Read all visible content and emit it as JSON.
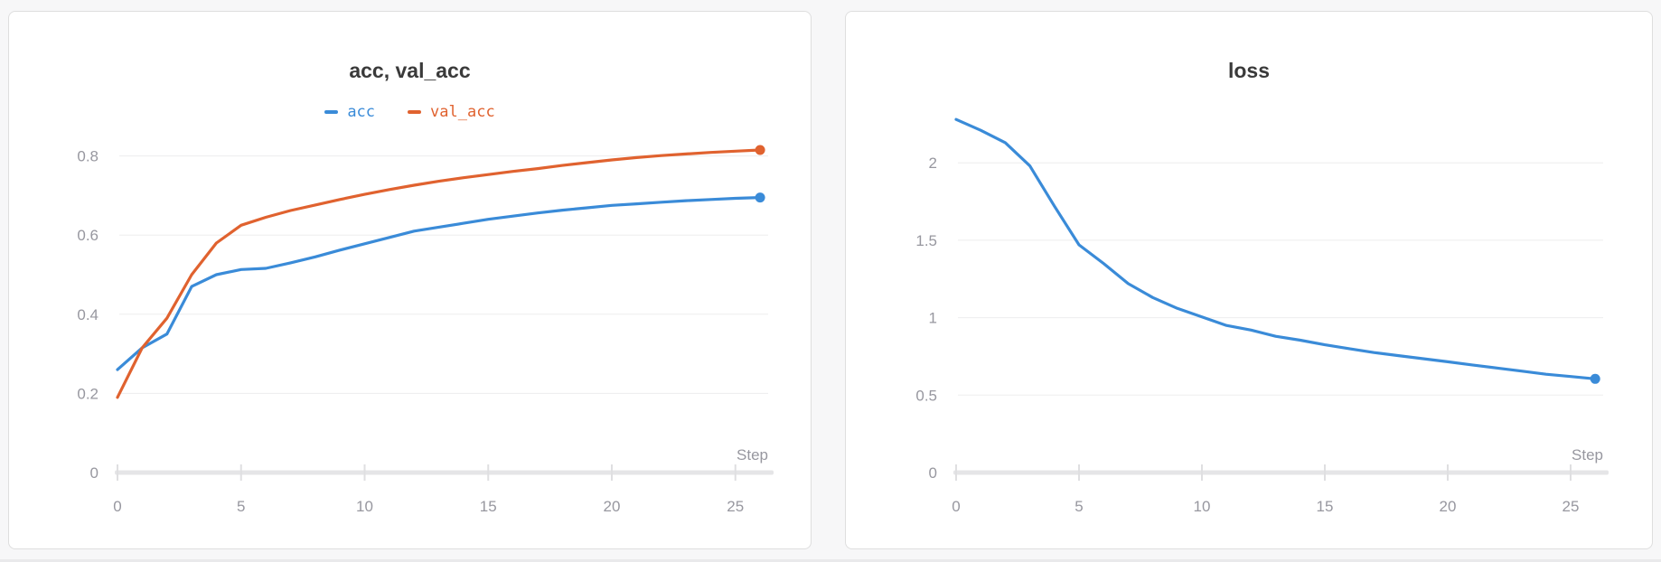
{
  "page": {
    "colors": {
      "background": "#f7f7f8",
      "panel_background": "#ffffff",
      "panel_border": "#dedede",
      "title_text": "#3a3a3a",
      "tick_text": "#97979f",
      "gridline": "#ededee",
      "axis_bar": "#e5e5e7",
      "axis_tick": "#dfdfe1",
      "series_blue": "#3a8bd8",
      "series_orange": "#e0622f"
    }
  },
  "chart_data": [
    {
      "type": "line",
      "title": "acc, val_acc",
      "xlabel": "Step",
      "show_legend": true,
      "grid": "horizontal",
      "legend_position": "top-center",
      "xlim": [
        0,
        26
      ],
      "ylim": [
        0,
        0.9
      ],
      "x": [
        0,
        1,
        2,
        3,
        4,
        5,
        6,
        7,
        8,
        9,
        10,
        11,
        12,
        13,
        14,
        15,
        16,
        17,
        18,
        19,
        20,
        21,
        22,
        23,
        24,
        25,
        26
      ],
      "x_ticks": [
        {
          "value": 0,
          "label": "0"
        },
        {
          "value": 5,
          "label": "5"
        },
        {
          "value": 10,
          "label": "10"
        },
        {
          "value": 15,
          "label": "15"
        },
        {
          "value": 20,
          "label": "20"
        },
        {
          "value": 25,
          "label": "25"
        }
      ],
      "y_ticks": [
        {
          "value": 0,
          "label": "0"
        },
        {
          "value": 0.2,
          "label": "0.2"
        },
        {
          "value": 0.4,
          "label": "0.4"
        },
        {
          "value": 0.6,
          "label": "0.6"
        },
        {
          "value": 0.8,
          "label": "0.8"
        }
      ],
      "series": [
        {
          "name": "acc",
          "color": "#3a8bd8",
          "values": [
            0.26,
            0.315,
            0.35,
            0.47,
            0.5,
            0.513,
            0.516,
            0.53,
            0.545,
            0.562,
            0.578,
            0.594,
            0.61,
            0.62,
            0.63,
            0.64,
            0.648,
            0.656,
            0.663,
            0.669,
            0.675,
            0.679,
            0.683,
            0.687,
            0.69,
            0.693,
            0.695
          ]
        },
        {
          "name": "val_acc",
          "color": "#e0622f",
          "values": [
            0.19,
            0.315,
            0.39,
            0.5,
            0.58,
            0.625,
            0.645,
            0.662,
            0.676,
            0.69,
            0.703,
            0.715,
            0.726,
            0.736,
            0.745,
            0.753,
            0.761,
            0.768,
            0.776,
            0.783,
            0.79,
            0.796,
            0.801,
            0.805,
            0.809,
            0.812,
            0.815
          ]
        }
      ]
    },
    {
      "type": "line",
      "title": "loss",
      "xlabel": "Step",
      "show_legend": false,
      "grid": "horizontal",
      "xlim": [
        0,
        26
      ],
      "ylim": [
        0,
        2.4
      ],
      "x": [
        0,
        1,
        2,
        3,
        4,
        5,
        6,
        7,
        8,
        9,
        10,
        11,
        12,
        13,
        14,
        15,
        16,
        17,
        18,
        19,
        20,
        21,
        22,
        23,
        24,
        25,
        26
      ],
      "x_ticks": [
        {
          "value": 0,
          "label": "0"
        },
        {
          "value": 5,
          "label": "5"
        },
        {
          "value": 10,
          "label": "10"
        },
        {
          "value": 15,
          "label": "15"
        },
        {
          "value": 20,
          "label": "20"
        },
        {
          "value": 25,
          "label": "25"
        }
      ],
      "y_ticks": [
        {
          "value": 0,
          "label": "0"
        },
        {
          "value": 0.5,
          "label": "0.5"
        },
        {
          "value": 1,
          "label": "1"
        },
        {
          "value": 1.5,
          "label": "1.5"
        },
        {
          "value": 2,
          "label": "2"
        }
      ],
      "series": [
        {
          "name": "loss",
          "color": "#3a8bd8",
          "values": [
            2.28,
            2.21,
            2.13,
            1.98,
            1.72,
            1.47,
            1.35,
            1.22,
            1.13,
            1.06,
            1.005,
            0.95,
            0.92,
            0.88,
            0.855,
            0.825,
            0.8,
            0.775,
            0.755,
            0.735,
            0.715,
            0.695,
            0.675,
            0.655,
            0.635,
            0.62,
            0.605
          ]
        }
      ]
    }
  ]
}
